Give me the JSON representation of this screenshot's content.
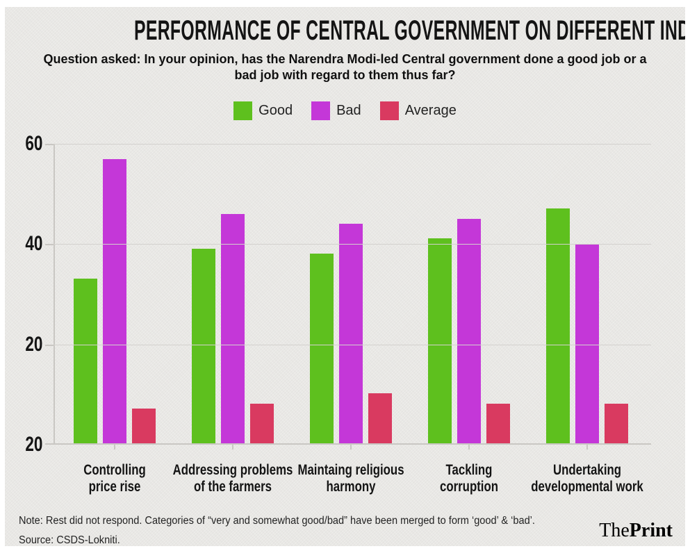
{
  "header": {
    "title": "PERFORMANCE OF CENTRAL GOVERNMENT ON DIFFERENT INDICATORS (%)",
    "subtitle": "Question asked: In your opinion, has the Narendra Modi-led Central government done a good job or a bad job with regard to them thus far?",
    "subtitle_lines": [
      "Question asked: In your opinion, has the Narendra Modi-led Central government done a good job or a",
      "bad job with regard to them thus far?"
    ]
  },
  "chart_data": {
    "type": "bar",
    "categories": [
      "Controlling price rise",
      "Addressing problems of the farmers",
      "Maintaing religious harmony",
      "Tackling corruption",
      "Undertaking developmental work"
    ],
    "x_tick_label_lines": [
      [
        "Controlling",
        "price rise"
      ],
      [
        "Addressing problems",
        "of the farmers"
      ],
      [
        "Maintaing religious",
        "harmony"
      ],
      [
        "Tackling",
        "corruption"
      ],
      [
        "Undertaking",
        "developmental work"
      ]
    ],
    "series": [
      {
        "name": "Good",
        "color": "#5ec01e",
        "values": [
          33,
          39,
          38,
          41,
          47
        ]
      },
      {
        "name": "Bad",
        "color": "#c437d8",
        "values": [
          57,
          46,
          44,
          45,
          40
        ]
      },
      {
        "name": "Average",
        "color": "#d93a60",
        "values": [
          7,
          8,
          10,
          8,
          8
        ]
      }
    ],
    "ylim": [
      0,
      60
    ],
    "y_tick_labels": [
      "60",
      "40",
      "20"
    ],
    "baseline_label": "20",
    "grid": true,
    "legend_position": "top-center",
    "title": "PERFORMANCE OF CENTRAL GOVERNMENT ON DIFFERENT INDICATORS (%)",
    "xlabel": "",
    "ylabel": ""
  },
  "footer": {
    "note": "Note: Rest did not respond. Categories of “very and somewhat good/bad” have been merged to form ‘good’ & ‘bad’.",
    "source": "Source: CSDS-Lokniti.",
    "logo_the": "The",
    "logo_print": "Print"
  },
  "colors": {
    "background": "#e9e8e5",
    "good": "#5ec01e",
    "bad": "#c437d8",
    "average": "#d93a60",
    "gridline": "#d3d1ce",
    "axis": "#c9c7c3",
    "text": "#141414"
  }
}
